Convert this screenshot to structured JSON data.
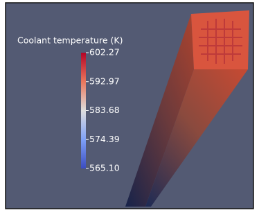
{
  "colorbar": {
    "title": "Coolant temperature (K)",
    "ticks": [
      "602.27",
      "592.97",
      "583.68",
      "574.39",
      "565.10"
    ]
  }
}
